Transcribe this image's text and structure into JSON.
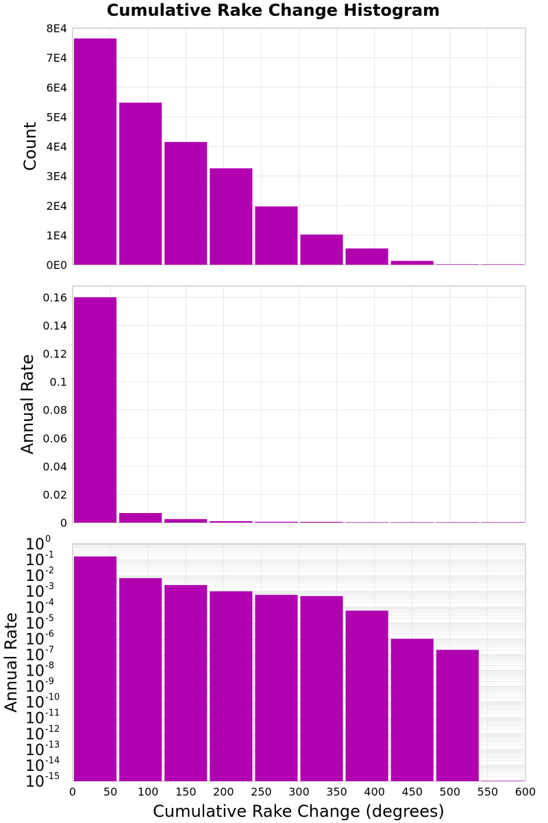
{
  "chart_data": {
    "title": "Cumulative Rake Change Histogram",
    "type": "bar",
    "bar_color": "#b000b0",
    "x": {
      "label": "Cumulative Rake Change (degrees)",
      "range": [
        0,
        600
      ],
      "ticks": [
        "0",
        "50",
        "100",
        "150",
        "200",
        "250",
        "300",
        "350",
        "400",
        "450",
        "500",
        "550",
        "600"
      ],
      "bin_width": 60,
      "bin_starts": [
        0,
        60,
        120,
        180,
        240,
        300,
        360,
        420,
        480,
        540
      ]
    },
    "panels": [
      {
        "name": "count",
        "ylabel": "Count",
        "scale": "linear",
        "ylim": [
          0,
          80000
        ],
        "yticks": [
          {
            "v": 0,
            "label": "0E0"
          },
          {
            "v": 10000,
            "label": "1E4"
          },
          {
            "v": 20000,
            "label": "2E4"
          },
          {
            "v": 30000,
            "label": "3E4"
          },
          {
            "v": 40000,
            "label": "4E4"
          },
          {
            "v": 50000,
            "label": "5E4"
          },
          {
            "v": 60000,
            "label": "6E4"
          },
          {
            "v": 70000,
            "label": "7E4"
          },
          {
            "v": 80000,
            "label": "8E4"
          }
        ],
        "values": [
          76500,
          54800,
          41500,
          32600,
          19700,
          10200,
          5500,
          1300,
          150,
          10
        ]
      },
      {
        "name": "annual-rate-linear",
        "ylabel": "Annual Rate",
        "scale": "linear",
        "ylim": [
          0,
          0.168
        ],
        "yticks": [
          {
            "v": 0,
            "label": "0"
          },
          {
            "v": 0.02,
            "label": "0.02"
          },
          {
            "v": 0.04,
            "label": "0.04"
          },
          {
            "v": 0.06,
            "label": "0.06"
          },
          {
            "v": 0.08,
            "label": "0.08"
          },
          {
            "v": 0.1,
            "label": "0.1"
          },
          {
            "v": 0.12,
            "label": "0.12"
          },
          {
            "v": 0.14,
            "label": "0.14"
          },
          {
            "v": 0.16,
            "label": "0.16"
          }
        ],
        "values": [
          0.16,
          0.0068,
          0.0025,
          0.001,
          0.0006,
          0.0005,
          6e-05,
          1e-06,
          2e-07,
          1e-15
        ]
      },
      {
        "name": "annual-rate-log",
        "ylabel": "Annual Rate",
        "scale": "log",
        "log_range": [
          -15,
          0
        ],
        "log_base": "10",
        "log_exponents": [
          "0",
          "-1",
          "-2",
          "-3",
          "-4",
          "-5",
          "-6",
          "-7",
          "-8",
          "-9",
          "-10",
          "-11",
          "-12",
          "-13",
          "-14",
          "-15"
        ],
        "values": [
          0.16,
          0.0068,
          0.0025,
          0.001,
          0.0006,
          0.0005,
          6e-05,
          1e-06,
          2e-07,
          1e-15
        ]
      }
    ]
  }
}
